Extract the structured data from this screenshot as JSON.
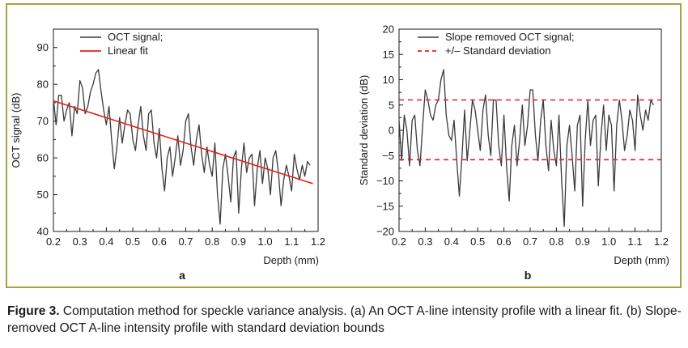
{
  "caption": {
    "label": "Figure 3.",
    "text": "Computation method for speckle variance analysis. (a) An OCT A-line intensity profile with a linear fit. (b) Slope-removed OCT A-line intensity profile with standard deviation bounds"
  },
  "colors": {
    "signal": "#3a3a3a",
    "fit": "#e02020",
    "bounds": "#e02020",
    "frame": "#a8a040",
    "axis": "#1a1a1a"
  },
  "chart_data": [
    {
      "type": "line",
      "panel_label": "a",
      "xlabel": "Depth (mm)",
      "ylabel": "OCT signal (dB)",
      "xlim": [
        0.2,
        1.2
      ],
      "ylim": [
        40,
        95
      ],
      "xticks": [
        0.2,
        0.3,
        0.4,
        0.5,
        0.6,
        0.7,
        0.8,
        0.9,
        1.0,
        1.1,
        1.2
      ],
      "xtick_labels": [
        "0.2",
        "0.3",
        "0.4",
        "0.5",
        "0.6",
        "0.7",
        "0.8",
        "0.9",
        "1.0",
        "1.1",
        "1.2"
      ],
      "yticks": [
        40,
        50,
        60,
        70,
        80,
        90
      ],
      "ytick_labels": [
        "40",
        "50",
        "60",
        "70",
        "80",
        "90"
      ],
      "legend_position": "top-left",
      "series": [
        {
          "name": "OCT signal;",
          "style": "solid",
          "x": [
            0.2,
            0.21,
            0.22,
            0.23,
            0.24,
            0.25,
            0.26,
            0.27,
            0.28,
            0.29,
            0.3,
            0.31,
            0.32,
            0.33,
            0.34,
            0.35,
            0.36,
            0.37,
            0.38,
            0.39,
            0.4,
            0.41,
            0.42,
            0.43,
            0.44,
            0.45,
            0.46,
            0.47,
            0.48,
            0.49,
            0.5,
            0.51,
            0.52,
            0.53,
            0.54,
            0.55,
            0.56,
            0.57,
            0.58,
            0.59,
            0.6,
            0.61,
            0.62,
            0.63,
            0.64,
            0.65,
            0.66,
            0.67,
            0.68,
            0.69,
            0.7,
            0.71,
            0.72,
            0.73,
            0.74,
            0.75,
            0.76,
            0.77,
            0.78,
            0.79,
            0.8,
            0.81,
            0.82,
            0.83,
            0.84,
            0.85,
            0.86,
            0.87,
            0.88,
            0.89,
            0.9,
            0.91,
            0.92,
            0.93,
            0.94,
            0.95,
            0.96,
            0.97,
            0.98,
            0.99,
            1.0,
            1.01,
            1.02,
            1.03,
            1.04,
            1.05,
            1.06,
            1.07,
            1.08,
            1.09,
            1.1,
            1.11,
            1.12,
            1.13,
            1.14,
            1.15,
            1.16,
            1.17
          ],
          "y": [
            76,
            69,
            77,
            77,
            70,
            73,
            75,
            66,
            74,
            72,
            81,
            79,
            72,
            74,
            78,
            80,
            83,
            84,
            78,
            73,
            69,
            74,
            65,
            57,
            63,
            71,
            64,
            69,
            73,
            72,
            65,
            62,
            69,
            74,
            66,
            62,
            72,
            73,
            64,
            60,
            68,
            57,
            51,
            60,
            63,
            55,
            60,
            66,
            58,
            62,
            70,
            72,
            63,
            58,
            65,
            69,
            61,
            56,
            63,
            58,
            55,
            64,
            50,
            42,
            57,
            61,
            55,
            48,
            60,
            62,
            45,
            57,
            64,
            56,
            60,
            61,
            47,
            57,
            62,
            53,
            60,
            57,
            50,
            60,
            62,
            56,
            47,
            54,
            58,
            55,
            51,
            61,
            57,
            54,
            58,
            55,
            59,
            58
          ]
        },
        {
          "name": "Linear fit",
          "style": "solid",
          "x": [
            0.2,
            1.18
          ],
          "y": [
            75.5,
            53
          ]
        }
      ]
    },
    {
      "type": "line",
      "panel_label": "b",
      "xlabel": "Depth (mm)",
      "ylabel": "Standard deviation (dB)",
      "xlim": [
        0.2,
        1.2
      ],
      "ylim": [
        -20,
        20
      ],
      "xticks": [
        0.2,
        0.3,
        0.4,
        0.5,
        0.6,
        0.7,
        0.8,
        0.9,
        1.0,
        1.1,
        1.2
      ],
      "xtick_labels": [
        "0.2",
        "0.3",
        "0.4",
        "0.5",
        "0.6",
        "0.7",
        "0.8",
        "0.9",
        "1.0",
        "1.1",
        "1.2"
      ],
      "yticks": [
        -20,
        -15,
        -10,
        -5,
        0,
        5,
        10,
        15,
        20
      ],
      "ytick_labels": [
        "−20",
        "−15",
        "−10",
        "−5",
        "0",
        "5",
        "10",
        "15",
        "20"
      ],
      "legend_position": "top-left",
      "series": [
        {
          "name": "Slope removed OCT signal;",
          "style": "solid",
          "x": [
            0.2,
            0.21,
            0.22,
            0.23,
            0.24,
            0.25,
            0.26,
            0.27,
            0.28,
            0.29,
            0.3,
            0.31,
            0.32,
            0.33,
            0.34,
            0.35,
            0.36,
            0.37,
            0.38,
            0.39,
            0.4,
            0.41,
            0.42,
            0.43,
            0.44,
            0.45,
            0.46,
            0.47,
            0.48,
            0.49,
            0.5,
            0.51,
            0.52,
            0.53,
            0.54,
            0.55,
            0.56,
            0.57,
            0.58,
            0.59,
            0.6,
            0.61,
            0.62,
            0.63,
            0.64,
            0.65,
            0.66,
            0.67,
            0.68,
            0.69,
            0.7,
            0.71,
            0.72,
            0.73,
            0.74,
            0.75,
            0.76,
            0.77,
            0.78,
            0.79,
            0.8,
            0.81,
            0.82,
            0.83,
            0.84,
            0.85,
            0.86,
            0.87,
            0.88,
            0.89,
            0.9,
            0.91,
            0.92,
            0.93,
            0.94,
            0.95,
            0.96,
            0.97,
            0.98,
            0.99,
            1.0,
            1.01,
            1.02,
            1.03,
            1.04,
            1.05,
            1.06,
            1.07,
            1.08,
            1.09,
            1.1,
            1.11,
            1.12,
            1.13,
            1.14,
            1.15,
            1.16,
            1.17
          ],
          "y": [
            2,
            -6,
            3,
            0,
            -7,
            2,
            3,
            -4,
            -7,
            1,
            8,
            6,
            3,
            2,
            5,
            6,
            10,
            12,
            3,
            -1,
            -2,
            2,
            -6,
            -13,
            -5,
            4,
            -6,
            0,
            6,
            4,
            0,
            -4,
            4,
            7,
            -1,
            -5,
            6,
            6,
            -3,
            -7,
            3,
            -7,
            -14,
            -3,
            1,
            -7,
            -2,
            5,
            -3,
            1,
            8,
            8,
            -1,
            -6,
            2,
            6,
            -3,
            -8,
            2,
            -4,
            -7,
            3,
            -10,
            -19,
            -3,
            1,
            -5,
            -12,
            1,
            3,
            -15,
            -2,
            6,
            -3,
            2,
            3,
            -11,
            -1,
            5,
            -4,
            3,
            1,
            -12,
            1,
            6,
            2,
            -4,
            -1,
            4,
            2,
            -4,
            7,
            3,
            0,
            4,
            2,
            6,
            5
          ]
        },
        {
          "name": "+/– Standard deviation",
          "style": "dashed",
          "x": [
            0.2,
            1.2
          ],
          "y": [
            6,
            6
          ]
        },
        {
          "name": "",
          "style": "dashed",
          "x": [
            0.2,
            1.2
          ],
          "y": [
            -5.8,
            -5.8
          ]
        }
      ]
    }
  ]
}
